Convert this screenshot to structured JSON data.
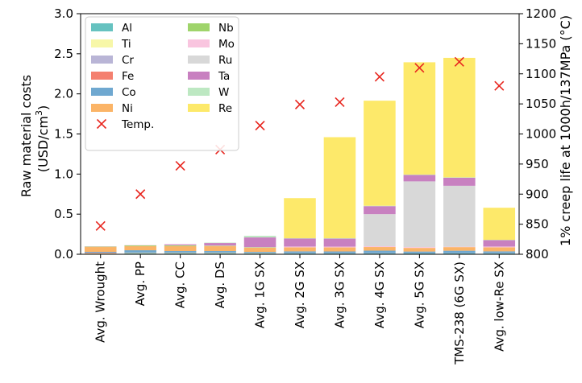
{
  "chart_data": {
    "type": "bar",
    "stacked": true,
    "categories": [
      "Avg. Wrought",
      "Avg. PP",
      "Avg. CC",
      "Avg. DS",
      "Avg. 1G SX",
      "Avg. 2G SX",
      "Avg. 3G SX",
      "Avg. 4G SX",
      "Avg. 5G SX",
      "TMS-238 (6G SX)",
      "Avg. low-Re SX"
    ],
    "ylabel_lines": [
      "Raw material costs",
      "(USD/cm",
      "3",
      ")"
    ],
    "y2label": "1% creep life at 1000h/137MPa (°C)",
    "ylim": [
      0,
      3.0
    ],
    "yticks": [
      "0.0",
      "0.5",
      "1.0",
      "1.5",
      "2.0",
      "2.5",
      "3.0"
    ],
    "y2lim": [
      800,
      1200
    ],
    "y2ticks": [
      "800",
      "850",
      "900",
      "950",
      "1000",
      "1050",
      "1100",
      "1150",
      "1200"
    ],
    "grid": false,
    "legend_position": "upper-left",
    "series": [
      {
        "name": "Al",
        "color": "#66c2c0",
        "values": [
          0.005,
          0.01,
          0.01,
          0.01,
          0.012,
          0.012,
          0.012,
          0.012,
          0.012,
          0.012,
          0.012
        ]
      },
      {
        "name": "Ti",
        "color": "#f7f7a8",
        "values": [
          0.005,
          0.005,
          0.005,
          0.005,
          0.003,
          0.0,
          0.0,
          0.0,
          0.0,
          0.0,
          0.0
        ]
      },
      {
        "name": "Cr",
        "color": "#b9b5d6",
        "values": [
          0.005,
          0.005,
          0.005,
          0.005,
          0.005,
          0.004,
          0.003,
          0.003,
          0.002,
          0.002,
          0.004
        ]
      },
      {
        "name": "Fe",
        "color": "#f4806f",
        "values": [
          0.005,
          0.0,
          0.0,
          0.0,
          0.0,
          0.0,
          0.0,
          0.0,
          0.0,
          0.0,
          0.0
        ]
      },
      {
        "name": "Co",
        "color": "#6fa8d0",
        "values": [
          0.01,
          0.03,
          0.02,
          0.02,
          0.01,
          0.02,
          0.02,
          0.03,
          0.02,
          0.03,
          0.02
        ]
      },
      {
        "name": "Ni",
        "color": "#fbb467",
        "values": [
          0.06,
          0.05,
          0.06,
          0.06,
          0.05,
          0.05,
          0.05,
          0.045,
          0.045,
          0.045,
          0.05
        ]
      },
      {
        "name": "Nb",
        "color": "#9fd46b",
        "values": [
          0.005,
          0.01,
          0.01,
          0.005,
          0.005,
          0.0,
          0.0,
          0.0,
          0.0,
          0.0,
          0.0
        ]
      },
      {
        "name": "Mo",
        "color": "#f9c5df",
        "values": [
          0.005,
          0.005,
          0.005,
          0.005,
          0.005,
          0.01,
          0.01,
          0.01,
          0.01,
          0.005,
          0.01
        ]
      },
      {
        "name": "Ru",
        "color": "#d8d8d8",
        "values": [
          0.0,
          0.0,
          0.0,
          0.0,
          0.0,
          0.0,
          0.0,
          0.4,
          0.82,
          0.76,
          0.0
        ]
      },
      {
        "name": "Ta",
        "color": "#c880c0",
        "values": [
          0.0,
          0.0,
          0.01,
          0.03,
          0.12,
          0.1,
          0.1,
          0.1,
          0.08,
          0.1,
          0.08
        ]
      },
      {
        "name": "W",
        "color": "#bde8c2",
        "values": [
          0.0,
          0.0,
          0.0,
          0.005,
          0.02,
          0.004,
          0.005,
          0.005,
          0.005,
          0.005,
          0.004
        ]
      },
      {
        "name": "Re",
        "color": "#fde96a",
        "values": [
          0.0,
          0.0,
          0.0,
          0.0,
          0.0,
          0.5,
          1.26,
          1.31,
          1.4,
          1.49,
          0.4
        ]
      }
    ],
    "temperature": {
      "name": "Temp.",
      "color": "#e8261f",
      "values": [
        847,
        900,
        947,
        974,
        1014,
        1049,
        1053,
        1095,
        1110,
        1120,
        1080
      ]
    }
  }
}
